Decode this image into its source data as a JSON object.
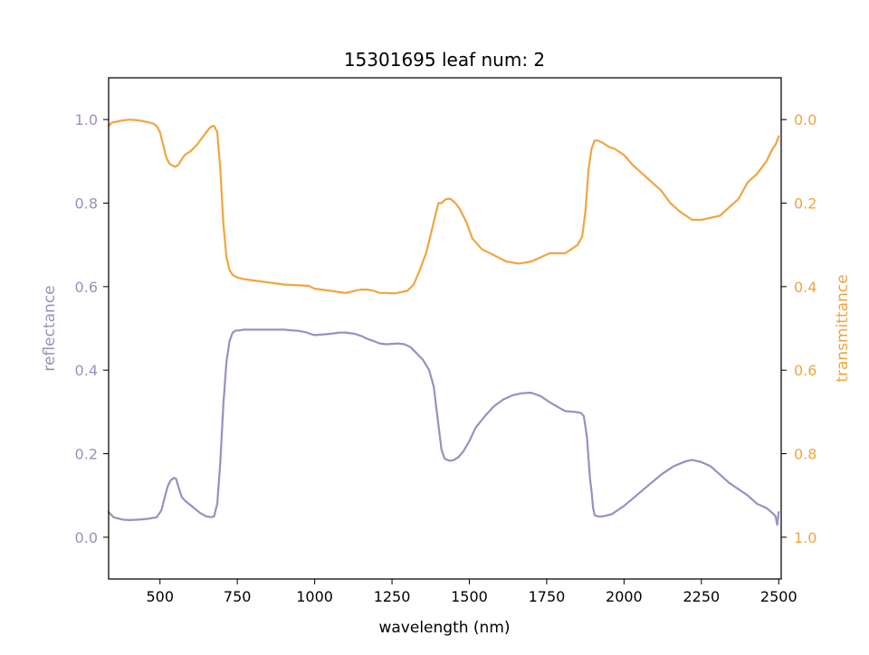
{
  "chart_data": {
    "type": "line",
    "title": "15301695 leaf num: 2",
    "xlabel": "wavelength (nm)",
    "xlim": [
      334,
      2508
    ],
    "xticks": [
      500,
      750,
      1000,
      1250,
      1500,
      1750,
      2000,
      2250,
      2500
    ],
    "left_axis": {
      "label": "reflectance",
      "color": "#9990c0",
      "lim": [
        -0.1,
        1.1
      ],
      "ticks": [
        0.0,
        0.2,
        0.4,
        0.6,
        0.8,
        1.0
      ],
      "tick_labels": [
        "0.0",
        "0.2",
        "0.4",
        "0.6",
        "0.8",
        "1.0"
      ]
    },
    "right_axis": {
      "label": "transmittance",
      "color": "#f0a540",
      "lim": [
        1.1,
        -0.1
      ],
      "inverted": true,
      "ticks": [
        0.0,
        0.2,
        0.4,
        0.6,
        0.8,
        1.0
      ],
      "tick_labels": [
        "0.0",
        "0.2",
        "0.4",
        "0.6",
        "0.8",
        "1.0"
      ]
    },
    "series": [
      {
        "axis": "left",
        "color": "#9990c0",
        "x": [
          334,
          340,
          350,
          380,
          400,
          430,
          460,
          490,
          505,
          515,
          525,
          535,
          545,
          552,
          560,
          570,
          580,
          590,
          610,
          630,
          650,
          665,
          675,
          685,
          695,
          705,
          715,
          725,
          735,
          745,
          755,
          770,
          800,
          850,
          900,
          950,
          975,
          990,
          1000,
          1020,
          1050,
          1080,
          1100,
          1130,
          1150,
          1170,
          1190,
          1210,
          1230,
          1250,
          1270,
          1290,
          1310,
          1330,
          1350,
          1370,
          1385,
          1400,
          1410,
          1420,
          1435,
          1450,
          1465,
          1480,
          1500,
          1520,
          1550,
          1580,
          1610,
          1640,
          1670,
          1700,
          1730,
          1760,
          1790,
          1810,
          1840,
          1860,
          1870,
          1880,
          1890,
          1895,
          1900,
          1905,
          1915,
          1930,
          1960,
          2000,
          2040,
          2080,
          2120,
          2160,
          2200,
          2220,
          2250,
          2280,
          2310,
          2340,
          2370,
          2400,
          2430,
          2460,
          2480,
          2490,
          2495,
          2500
        ],
        "values": [
          0.06,
          0.055,
          0.048,
          0.042,
          0.041,
          0.042,
          0.044,
          0.048,
          0.065,
          0.095,
          0.122,
          0.137,
          0.142,
          0.14,
          0.12,
          0.097,
          0.088,
          0.082,
          0.07,
          0.058,
          0.05,
          0.048,
          0.05,
          0.08,
          0.18,
          0.32,
          0.42,
          0.47,
          0.49,
          0.495,
          0.495,
          0.497,
          0.497,
          0.497,
          0.497,
          0.494,
          0.49,
          0.486,
          0.484,
          0.485,
          0.487,
          0.49,
          0.49,
          0.487,
          0.482,
          0.475,
          0.47,
          0.464,
          0.462,
          0.463,
          0.464,
          0.462,
          0.455,
          0.44,
          0.425,
          0.4,
          0.36,
          0.27,
          0.21,
          0.188,
          0.183,
          0.185,
          0.192,
          0.205,
          0.23,
          0.262,
          0.29,
          0.314,
          0.33,
          0.34,
          0.345,
          0.346,
          0.338,
          0.323,
          0.31,
          0.302,
          0.3,
          0.298,
          0.29,
          0.24,
          0.14,
          0.11,
          0.07,
          0.053,
          0.05,
          0.05,
          0.055,
          0.075,
          0.1,
          0.125,
          0.15,
          0.17,
          0.182,
          0.185,
          0.18,
          0.17,
          0.15,
          0.13,
          0.115,
          0.1,
          0.08,
          0.07,
          0.058,
          0.05,
          0.03,
          0.06
        ]
      },
      {
        "axis": "right",
        "color": "#f0a540",
        "x": [
          334,
          345,
          360,
          380,
          400,
          420,
          440,
          460,
          480,
          490,
          500,
          510,
          520,
          530,
          540,
          550,
          560,
          570,
          580,
          600,
          620,
          640,
          655,
          665,
          675,
          685,
          695,
          705,
          715,
          725,
          735,
          750,
          770,
          800,
          850,
          900,
          950,
          980,
          1000,
          1050,
          1100,
          1130,
          1150,
          1170,
          1190,
          1210,
          1230,
          1260,
          1300,
          1320,
          1340,
          1360,
          1380,
          1400,
          1410,
          1425,
          1440,
          1455,
          1470,
          1490,
          1510,
          1540,
          1580,
          1620,
          1660,
          1700,
          1730,
          1760,
          1790,
          1810,
          1830,
          1850,
          1865,
          1875,
          1885,
          1895,
          1905,
          1915,
          1930,
          1950,
          1970,
          2000,
          2030,
          2060,
          2090,
          2120,
          2150,
          2180,
          2200,
          2220,
          2250,
          2280,
          2310,
          2340,
          2370,
          2400,
          2430,
          2460,
          2480,
          2490,
          2500
        ],
        "values": [
          0.015,
          0.007,
          0.005,
          0.002,
          0.0,
          0.001,
          0.003,
          0.006,
          0.01,
          0.016,
          0.03,
          0.06,
          0.09,
          0.105,
          0.11,
          0.113,
          0.108,
          0.095,
          0.085,
          0.075,
          0.06,
          0.04,
          0.025,
          0.017,
          0.015,
          0.03,
          0.12,
          0.25,
          0.33,
          0.36,
          0.372,
          0.378,
          0.382,
          0.385,
          0.39,
          0.395,
          0.397,
          0.398,
          0.405,
          0.41,
          0.415,
          0.41,
          0.407,
          0.407,
          0.41,
          0.415,
          0.415,
          0.416,
          0.41,
          0.395,
          0.36,
          0.32,
          0.26,
          0.2,
          0.2,
          0.19,
          0.19,
          0.2,
          0.215,
          0.245,
          0.285,
          0.31,
          0.325,
          0.34,
          0.345,
          0.34,
          0.33,
          0.32,
          0.32,
          0.32,
          0.31,
          0.3,
          0.28,
          0.22,
          0.12,
          0.07,
          0.05,
          0.05,
          0.055,
          0.065,
          0.07,
          0.085,
          0.11,
          0.13,
          0.15,
          0.17,
          0.2,
          0.22,
          0.23,
          0.24,
          0.24,
          0.235,
          0.23,
          0.21,
          0.19,
          0.15,
          0.13,
          0.1,
          0.07,
          0.06,
          0.04
        ]
      }
    ]
  }
}
